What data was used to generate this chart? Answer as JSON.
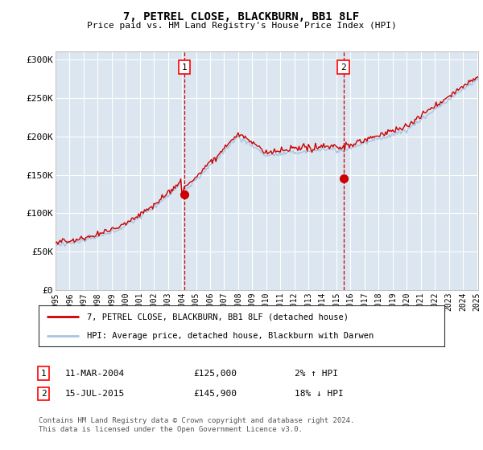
{
  "title": "7, PETREL CLOSE, BLACKBURN, BB1 8LF",
  "subtitle": "Price paid vs. HM Land Registry's House Price Index (HPI)",
  "ylabel_ticks": [
    "£0",
    "£50K",
    "£100K",
    "£150K",
    "£200K",
    "£250K",
    "£300K"
  ],
  "ytick_values": [
    0,
    50000,
    100000,
    150000,
    200000,
    250000,
    300000
  ],
  "ylim": [
    0,
    310000
  ],
  "background_color": "#dce6f0",
  "plot_bg_color": "#dce6f0",
  "grid_color": "#ffffff",
  "hpi_color": "#aac4e0",
  "price_color": "#cc0000",
  "sale1_val": 125000,
  "sale2_val": 145900,
  "legend_line1": "7, PETREL CLOSE, BLACKBURN, BB1 8LF (detached house)",
  "legend_line2": "HPI: Average price, detached house, Blackburn with Darwen",
  "footnote": "Contains HM Land Registry data © Crown copyright and database right 2024.\nThis data is licensed under the Open Government Licence v3.0.",
  "xtick_years": [
    "1995",
    "1996",
    "1997",
    "1998",
    "1999",
    "2000",
    "2001",
    "2002",
    "2003",
    "2004",
    "2005",
    "2006",
    "2007",
    "2008",
    "2009",
    "2010",
    "2011",
    "2012",
    "2013",
    "2014",
    "2015",
    "2016",
    "2017",
    "2018",
    "2019",
    "2020",
    "2021",
    "2022",
    "2023",
    "2024",
    "2025"
  ]
}
